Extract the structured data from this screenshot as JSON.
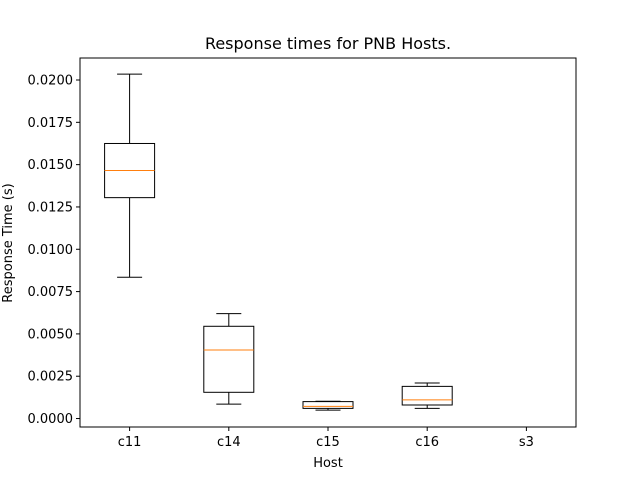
{
  "chart_data": {
    "type": "box",
    "title": "Response times for PNB Hosts.",
    "xlabel": "Host",
    "ylabel": "Response Time (s)",
    "ylim": [
      -0.0005,
      0.0213
    ],
    "yticks": [
      "0.0000",
      "0.0025",
      "0.0050",
      "0.0075",
      "0.0100",
      "0.0125",
      "0.0150",
      "0.0175",
      "0.0200"
    ],
    "categories": [
      "c11",
      "c14",
      "c15",
      "c16",
      "s3"
    ],
    "boxes": [
      {
        "name": "c11",
        "whisker_low": 0.00835,
        "q1": 0.01305,
        "median": 0.01465,
        "q3": 0.01625,
        "whisker_high": 0.02035
      },
      {
        "name": "c14",
        "whisker_low": 0.00085,
        "q1": 0.00155,
        "median": 0.00405,
        "q3": 0.00545,
        "whisker_high": 0.0062
      },
      {
        "name": "c15",
        "whisker_low": 0.0005,
        "q1": 0.0006,
        "median": 0.00072,
        "q3": 0.001,
        "whisker_high": 0.00102
      },
      {
        "name": "c16",
        "whisker_low": 0.0006,
        "q1": 0.0008,
        "median": 0.0011,
        "q3": 0.0019,
        "whisker_high": 0.0021
      },
      {
        "name": "s3",
        "whisker_low": null,
        "q1": null,
        "median": null,
        "q3": null,
        "whisker_high": null
      }
    ],
    "colors": {
      "box": "#000000",
      "median": "#ff7f0e",
      "axis": "#000000",
      "background": "#ffffff"
    },
    "grid": false,
    "legend": "none"
  }
}
